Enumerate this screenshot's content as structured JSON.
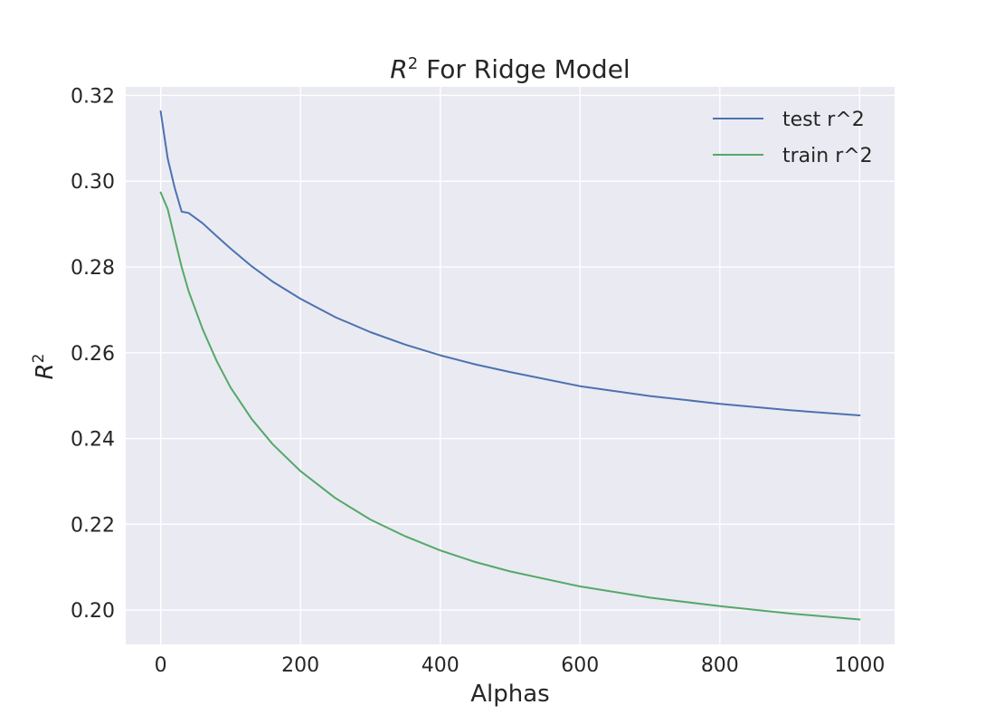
{
  "chart_data": {
    "type": "line",
    "title_base": "R",
    "title_sup": "2",
    "title_rest": " For Ridge Model",
    "xlabel": "Alphas",
    "ylabel_base": "R",
    "ylabel_sup": "2",
    "xlim": [
      -50,
      1050
    ],
    "ylim": [
      0.192,
      0.322
    ],
    "xticks": [
      0,
      200,
      400,
      600,
      800,
      1000
    ],
    "yticks": [
      0.2,
      0.22,
      0.24,
      0.26,
      0.28,
      0.3,
      0.32
    ],
    "grid": true,
    "legend_position": "top-right",
    "background_color": "#eaeaf2",
    "series": [
      {
        "name": "test r^2",
        "color": "#4c72b0",
        "x": [
          0,
          10,
          20,
          30,
          40,
          60,
          80,
          100,
          130,
          160,
          200,
          250,
          300,
          350,
          400,
          450,
          500,
          600,
          700,
          800,
          900,
          1000
        ],
        "y": [
          0.3163,
          0.3053,
          0.2985,
          0.2929,
          0.2926,
          0.2902,
          0.2872,
          0.2843,
          0.2802,
          0.2766,
          0.2726,
          0.2683,
          0.2648,
          0.2619,
          0.2594,
          0.2573,
          0.2555,
          0.2522,
          0.2499,
          0.2481,
          0.2466,
          0.2454
        ]
      },
      {
        "name": "train r^2",
        "color": "#55a868",
        "x": [
          0,
          10,
          20,
          30,
          40,
          60,
          80,
          100,
          130,
          160,
          200,
          250,
          300,
          350,
          400,
          450,
          500,
          600,
          700,
          800,
          900,
          1000
        ],
        "y": [
          0.2974,
          0.2935,
          0.2867,
          0.28,
          0.2744,
          0.2655,
          0.2581,
          0.2519,
          0.2446,
          0.2387,
          0.2324,
          0.2261,
          0.2211,
          0.2172,
          0.2139,
          0.2112,
          0.209,
          0.2055,
          0.2029,
          0.2009,
          0.1992,
          0.1978
        ]
      }
    ]
  }
}
